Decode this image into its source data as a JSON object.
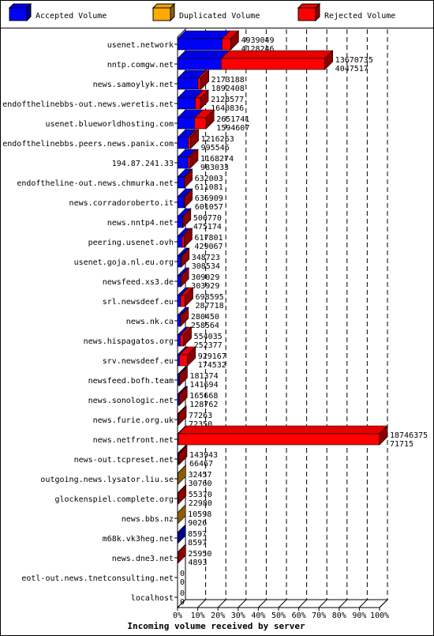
{
  "legend": [
    {
      "name": "Accepted Volume",
      "color": "#0000ff"
    },
    {
      "name": "Duplicated Volume",
      "color": "#ffaa00"
    },
    {
      "name": "Rejected Volume",
      "color": "#ff0000"
    }
  ],
  "chart_data": {
    "type": "bar",
    "orientation": "horizontal",
    "stacked": true,
    "title": "",
    "xlabel": "Incoming volume received by server",
    "ylabel": "",
    "x_ticks": [
      "0%",
      "10%",
      "20%",
      "30%",
      "40%",
      "50%",
      "60%",
      "70%",
      "80%",
      "90%",
      "100%"
    ],
    "xlim": [
      0,
      100
    ],
    "grid": true,
    "legend_position": "top",
    "rows": [
      {
        "server": "usenet.network",
        "total": 4939049,
        "accepted": 4128246,
        "duplicated": 0,
        "rejected": 810803,
        "label_top": "4939049",
        "label_bottom": "4128246"
      },
      {
        "server": "nntp.comgw.net",
        "total": 13670735,
        "accepted": 4047517,
        "duplicated": 0,
        "rejected": 9623218,
        "label_top": "13670735",
        "label_bottom": "4047517"
      },
      {
        "server": "news.samoylyk.net",
        "total": 2173188,
        "accepted": 1892408,
        "duplicated": 0,
        "rejected": 280780,
        "label_top": "2173188",
        "label_bottom": "1892408"
      },
      {
        "server": "endofthelinebbs-out.news.weretis.net",
        "total": 2128577,
        "accepted": 1640836,
        "duplicated": 0,
        "rejected": 487741,
        "label_top": "2128577",
        "label_bottom": "1640836"
      },
      {
        "server": "usenet.blueworldhosting.com",
        "total": 2651741,
        "accepted": 1594607,
        "duplicated": 0,
        "rejected": 1057134,
        "label_top": "2651741",
        "label_bottom": "1594607"
      },
      {
        "server": "endofthelinebbs.peers.news.panix.com",
        "total": 1216263,
        "accepted": 995546,
        "duplicated": 0,
        "rejected": 220717,
        "label_top": "1216263",
        "label_bottom": "995546"
      },
      {
        "server": "194.87.241.33",
        "total": 1168274,
        "accepted": 983033,
        "duplicated": 0,
        "rejected": 185241,
        "label_top": "1168274",
        "label_bottom": "983033"
      },
      {
        "server": "endoftheline-out.news.chmurka.net",
        "total": 632003,
        "accepted": 611081,
        "duplicated": 0,
        "rejected": 20922,
        "label_top": "632003",
        "label_bottom": "611081"
      },
      {
        "server": "news.corradoroberto.it",
        "total": 636909,
        "accepted": 601057,
        "duplicated": 0,
        "rejected": 35852,
        "label_top": "636909",
        "label_bottom": "601057"
      },
      {
        "server": "news.nntp4.net",
        "total": 500770,
        "accepted": 475174,
        "duplicated": 0,
        "rejected": 25596,
        "label_top": "500770",
        "label_bottom": "475174"
      },
      {
        "server": "peering.usenet.ovh",
        "total": 617801,
        "accepted": 429067,
        "duplicated": 0,
        "rejected": 188734,
        "label_top": "617801",
        "label_bottom": "429067"
      },
      {
        "server": "usenet.goja.nl.eu.org",
        "total": 348723,
        "accepted": 308534,
        "duplicated": 0,
        "rejected": 40189,
        "label_top": "348723",
        "label_bottom": "308534"
      },
      {
        "server": "newsfeed.xs3.de",
        "total": 309029,
        "accepted": 303929,
        "duplicated": 0,
        "rejected": 5100,
        "label_top": "309029",
        "label_bottom": "303929"
      },
      {
        "server": "srl.newsdeef.eu",
        "total": 698595,
        "accepted": 287718,
        "duplicated": 0,
        "rejected": 410877,
        "label_top": "698595",
        "label_bottom": "287718"
      },
      {
        "server": "news.nk.ca",
        "total": 280450,
        "accepted": 258564,
        "duplicated": 0,
        "rejected": 21886,
        "label_top": "280450",
        "label_bottom": "258564"
      },
      {
        "server": "news.hispagatos.org",
        "total": 554035,
        "accepted": 252377,
        "duplicated": 0,
        "rejected": 301658,
        "label_top": "554035",
        "label_bottom": "252377"
      },
      {
        "server": "srv.newsdeef.eu",
        "total": 929167,
        "accepted": 174532,
        "duplicated": 0,
        "rejected": 754635,
        "label_top": "929167",
        "label_bottom": "174532"
      },
      {
        "server": "newsfeed.bofh.team",
        "total": 181374,
        "accepted": 141694,
        "duplicated": 0,
        "rejected": 39680,
        "label_top": "181374",
        "label_bottom": "141694"
      },
      {
        "server": "news.sonologic.net",
        "total": 165668,
        "accepted": 128762,
        "duplicated": 0,
        "rejected": 36906,
        "label_top": "165668",
        "label_bottom": "128762"
      },
      {
        "server": "news.furie.org.uk",
        "total": 77263,
        "accepted": 72350,
        "duplicated": 0,
        "rejected": 4913,
        "label_top": "77263",
        "label_bottom": "72350"
      },
      {
        "server": "news.netfront.net",
        "total": 18746375,
        "accepted": 71715,
        "duplicated": 0,
        "rejected": 18674660,
        "label_top": "18746375",
        "label_bottom": "71715"
      },
      {
        "server": "news-out.tcpreset.net",
        "total": 143943,
        "accepted": 66467,
        "duplicated": 0,
        "rejected": 77476,
        "label_top": "143943",
        "label_bottom": "66467"
      },
      {
        "server": "outgoing.news.lysator.liu.se",
        "total": 32457,
        "accepted": 30760,
        "duplicated": 1697,
        "rejected": 0,
        "label_top": "32457",
        "label_bottom": "30760"
      },
      {
        "server": "glockenspiel.complete.org",
        "total": 55370,
        "accepted": 22980,
        "duplicated": 0,
        "rejected": 32390,
        "label_top": "55370",
        "label_bottom": "22980"
      },
      {
        "server": "news.bbs.nz",
        "total": 10598,
        "accepted": 9026,
        "duplicated": 1572,
        "rejected": 0,
        "label_top": "10598",
        "label_bottom": "9026"
      },
      {
        "server": "m68k.vk3heg.net",
        "total": 8597,
        "accepted": 8597,
        "duplicated": 0,
        "rejected": 0,
        "label_top": "8597",
        "label_bottom": "8597"
      },
      {
        "server": "news.dne3.net",
        "total": 25950,
        "accepted": 4893,
        "duplicated": 0,
        "rejected": 21057,
        "label_top": "25950",
        "label_bottom": "4893"
      },
      {
        "server": "eotl-out.news.tnetconsulting.net",
        "total": 0,
        "accepted": 0,
        "duplicated": 0,
        "rejected": 0,
        "label_top": "0",
        "label_bottom": "0"
      },
      {
        "server": "localhost",
        "total": 0,
        "accepted": 0,
        "duplicated": 0,
        "rejected": 0,
        "label_top": "0",
        "label_bottom": "0"
      }
    ]
  }
}
